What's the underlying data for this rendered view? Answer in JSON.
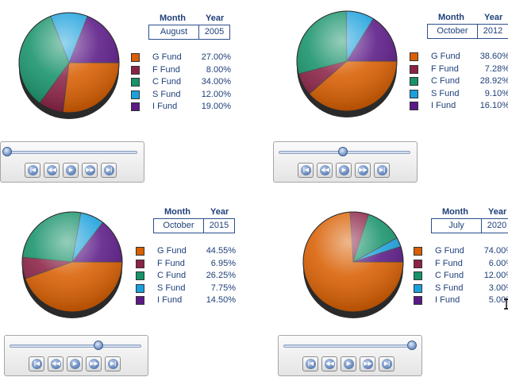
{
  "header_labels": {
    "month": "Month",
    "year": "Year"
  },
  "colors": {
    "G Fund": "#d95f02",
    "F Fund": "#8b2346",
    "C Fund": "#17926a",
    "S Fund": "#1aa0dc",
    "I Fund": "#5b1a86"
  },
  "chart_data": [
    {
      "type": "pie",
      "month": "August",
      "year": "2005",
      "slider_position": 0.0,
      "categories": [
        "G Fund",
        "F Fund",
        "C Fund",
        "S Fund",
        "I Fund"
      ],
      "values": [
        27.0,
        8.0,
        34.0,
        12.0,
        19.0
      ],
      "labels": [
        "27.00%",
        "8.00%",
        "34.00%",
        "12.00%",
        "19.00%"
      ]
    },
    {
      "type": "pie",
      "month": "October",
      "year": "2012",
      "slider_position": 0.49,
      "categories": [
        "G Fund",
        "F Fund",
        "C Fund",
        "S Fund",
        "I Fund"
      ],
      "values": [
        38.6,
        7.28,
        28.92,
        9.1,
        16.1
      ],
      "labels": [
        "38.60%",
        "7.28%",
        "28.92%",
        "9.10%",
        "16.10%"
      ]
    },
    {
      "type": "pie",
      "month": "October",
      "year": "2015",
      "slider_position": 0.68,
      "categories": [
        "G Fund",
        "F Fund",
        "C Fund",
        "S Fund",
        "I Fund"
      ],
      "values": [
        44.55,
        6.95,
        26.25,
        7.75,
        14.5
      ],
      "labels": [
        "44.55%",
        "6.95%",
        "26.25%",
        "7.75%",
        "14.50%"
      ]
    },
    {
      "type": "pie",
      "month": "July",
      "year": "2020",
      "slider_position": 0.99,
      "categories": [
        "G Fund",
        "F Fund",
        "C Fund",
        "S Fund",
        "I Fund"
      ],
      "values": [
        74.0,
        6.0,
        12.0,
        3.0,
        5.0
      ],
      "labels": [
        "74.00%",
        "6.00%",
        "12.00%",
        "3.00%",
        "5.00%"
      ]
    }
  ]
}
